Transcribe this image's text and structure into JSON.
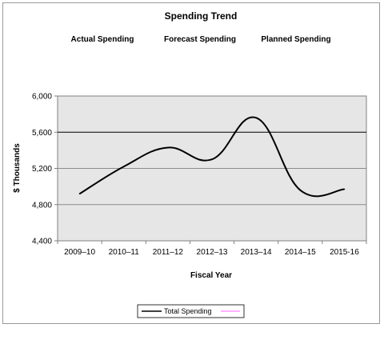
{
  "chart_data": {
    "type": "line",
    "title": "Spending Trend",
    "period_labels": [
      "Actual Spending",
      "Forecast Spending",
      "Planned Spending"
    ],
    "xlabel": "Fiscal Year",
    "ylabel": "$ Thousands",
    "categories": [
      "2009–10",
      "2010–11",
      "2011–12",
      "2012–13",
      "2013–14",
      "2014–15",
      "2015-16"
    ],
    "series": [
      {
        "name": "Total Spending",
        "values": [
          4920,
          5220,
          5430,
          5300,
          5760,
          4960,
          4970
        ],
        "color": "#000000"
      }
    ],
    "ylim": [
      4400,
      6000
    ],
    "yticks": [
      4400,
      4800,
      5200,
      5600,
      6000
    ],
    "ytick_labels": [
      "4,400",
      "4,800",
      "5,200",
      "5,600",
      "6,000"
    ],
    "grid": true,
    "plot_background": "#e6e6e6",
    "legend_position": "bottom",
    "legend_extra_swatch_color": "#ff66ff"
  }
}
